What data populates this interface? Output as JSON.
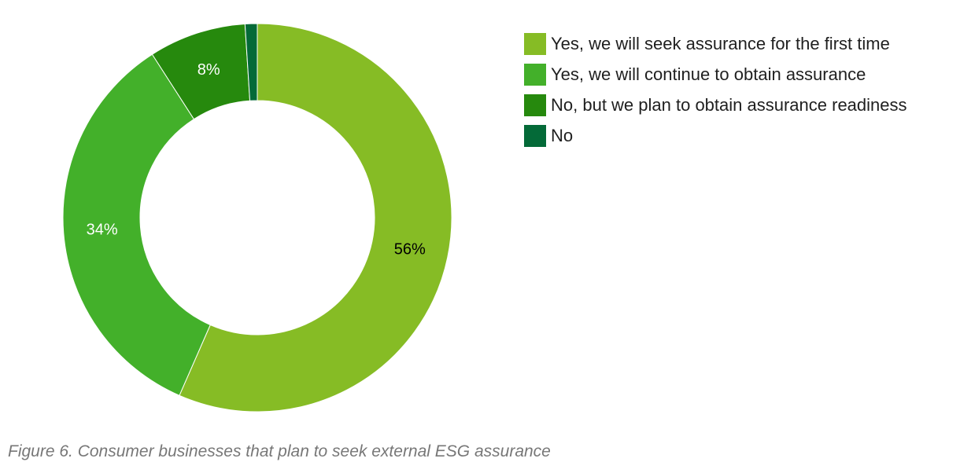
{
  "caption": "Figure 6. Consumer businesses that plan to seek external ESG assurance",
  "chart_data": {
    "type": "pie",
    "variant": "donut",
    "title": "",
    "legend_position": "right",
    "slices": [
      {
        "label": "Yes, we will seek assurance for the first time",
        "value": 56,
        "display": "56%",
        "color": "#86bc25",
        "label_color": "#000000"
      },
      {
        "label": "Yes, we will continue to obtain assurance",
        "value": 34,
        "display": "34%",
        "color": "#43b02a",
        "label_color": "#ffffff"
      },
      {
        "label": "No, but we plan to obtain assurance readiness",
        "value": 8,
        "display": "8%",
        "color": "#26890d",
        "label_color": "#ffffff"
      },
      {
        "label": "No",
        "value": 1,
        "display": "",
        "color": "#046a38",
        "label_color": "#ffffff"
      }
    ]
  }
}
